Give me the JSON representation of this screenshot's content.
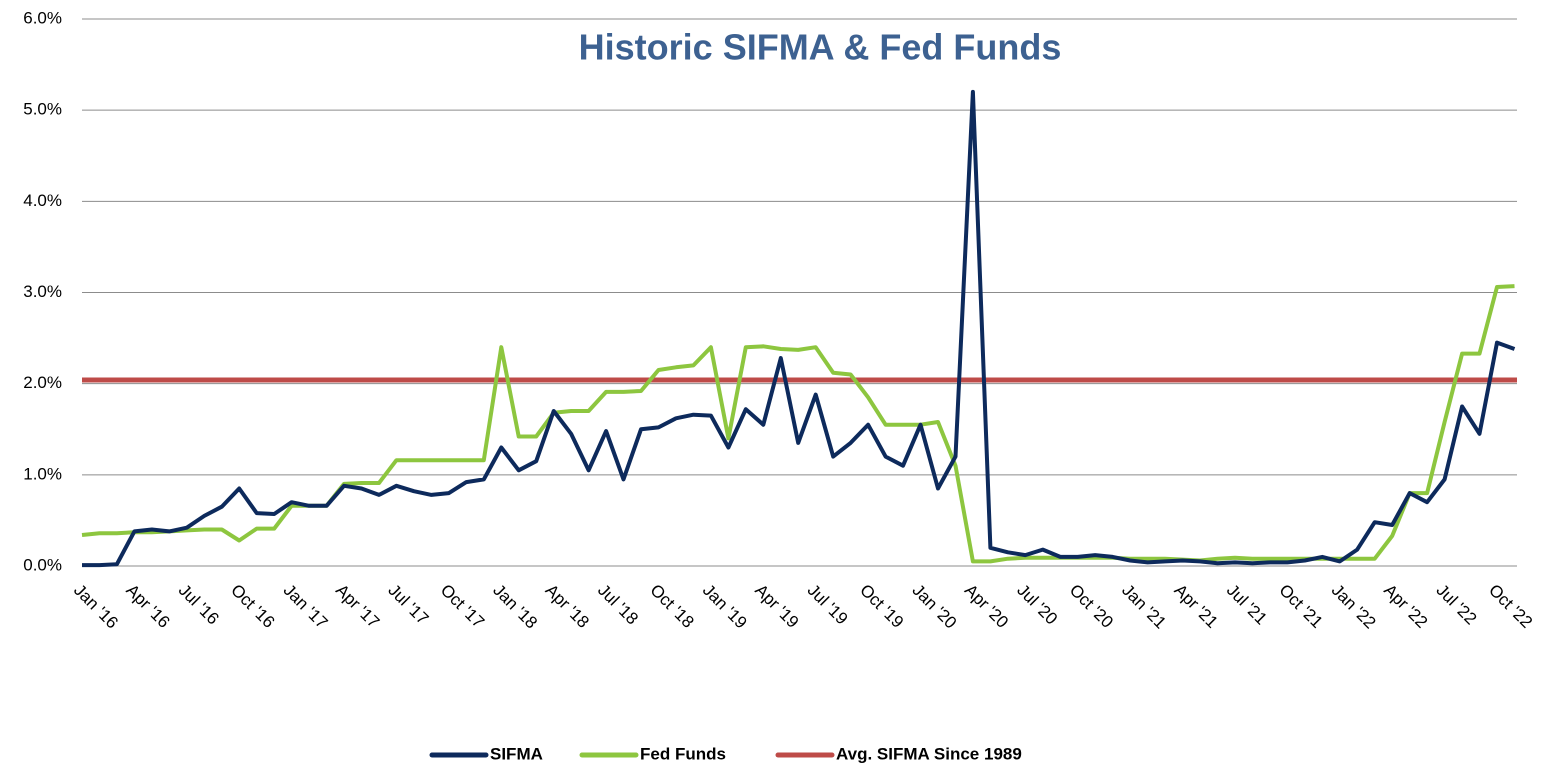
{
  "chart_data": {
    "type": "line",
    "title": "Historic SIFMA & Fed Funds",
    "categories": [
      "Jan '16",
      null,
      null,
      "Apr '16",
      null,
      null,
      "Jul '16",
      null,
      null,
      "Oct '16",
      null,
      null,
      "Jan '17",
      null,
      null,
      "Apr '17",
      null,
      null,
      "Jul '17",
      null,
      null,
      "Oct '17",
      null,
      null,
      "Jan '18",
      null,
      null,
      "Apr '18",
      null,
      null,
      "Jul '18",
      null,
      null,
      "Oct '18",
      null,
      null,
      "Jan '19",
      null,
      null,
      "Apr '19",
      null,
      null,
      "Jul '19",
      null,
      null,
      "Oct '19",
      null,
      null,
      "Jan '20",
      null,
      null,
      "Apr '20",
      null,
      null,
      "Jul '20",
      null,
      null,
      "Oct '20",
      null,
      null,
      "Jan '21",
      null,
      null,
      "Apr '21",
      null,
      null,
      "Jul '21",
      null,
      null,
      "Oct '21",
      null,
      null,
      "Jan '22",
      null,
      null,
      "Apr '22",
      null,
      null,
      "Jul '22",
      null,
      null,
      "Oct '22",
      null
    ],
    "series": [
      {
        "name": "SIFMA",
        "color": "#0d2a5c",
        "values": [
          0.01,
          0.01,
          0.02,
          0.38,
          0.4,
          0.38,
          0.42,
          0.55,
          0.65,
          0.85,
          0.58,
          0.57,
          0.7,
          0.66,
          0.66,
          0.88,
          0.85,
          0.78,
          0.88,
          0.82,
          0.78,
          0.8,
          0.92,
          0.95,
          1.3,
          1.05,
          1.15,
          1.7,
          1.45,
          1.05,
          1.48,
          0.95,
          1.5,
          1.52,
          1.62,
          1.66,
          1.65,
          1.3,
          1.72,
          1.55,
          2.28,
          1.35,
          1.88,
          1.2,
          1.35,
          1.55,
          1.2,
          1.1,
          1.55,
          0.85,
          1.2,
          5.2,
          0.2,
          0.15,
          0.12,
          0.18,
          0.1,
          0.1,
          0.12,
          0.1,
          0.06,
          0.04,
          0.05,
          0.06,
          0.05,
          0.03,
          0.04,
          0.03,
          0.04,
          0.04,
          0.06,
          0.1,
          0.05,
          0.18,
          0.48,
          0.45,
          0.8,
          0.7,
          0.95,
          1.75,
          1.45,
          2.45,
          2.38
        ]
      },
      {
        "name": "Fed Funds",
        "color": "#8dc63f",
        "values": [
          0.34,
          0.36,
          0.36,
          0.37,
          0.37,
          0.38,
          0.39,
          0.4,
          0.4,
          0.28,
          0.41,
          0.41,
          0.66,
          0.66,
          0.66,
          0.9,
          0.91,
          0.91,
          1.16,
          1.16,
          1.16,
          1.16,
          1.16,
          1.16,
          2.4,
          1.42,
          1.42,
          1.68,
          1.7,
          1.7,
          1.91,
          1.91,
          1.92,
          2.15,
          2.18,
          2.2,
          2.4,
          1.4,
          2.4,
          2.41,
          2.38,
          2.37,
          2.4,
          2.12,
          2.1,
          1.85,
          1.55,
          1.55,
          1.55,
          1.58,
          1.1,
          0.05,
          0.05,
          0.08,
          0.09,
          0.09,
          0.09,
          0.09,
          0.09,
          0.09,
          0.08,
          0.08,
          0.08,
          0.07,
          0.06,
          0.08,
          0.09,
          0.08,
          0.08,
          0.08,
          0.08,
          0.08,
          0.08,
          0.08,
          0.08,
          0.33,
          0.8,
          0.8,
          1.58,
          2.33,
          2.33,
          3.06,
          3.07
        ]
      }
    ],
    "reference_line": {
      "name": "Avg. SIFMA Since 1989",
      "value": 2.04,
      "color": "#be4b48"
    },
    "ylim": [
      0,
      6
    ],
    "yticks": [
      {
        "value": 0,
        "label": "0.0%"
      },
      {
        "value": 1,
        "label": "1.0%"
      },
      {
        "value": 2,
        "label": "2.0%"
      },
      {
        "value": 3,
        "label": "3.0%"
      },
      {
        "value": 4,
        "label": "4.0%"
      },
      {
        "value": 5,
        "label": "5.0%"
      },
      {
        "value": 6,
        "label": "6.0%"
      }
    ],
    "grid": true,
    "legend": "bottom"
  }
}
